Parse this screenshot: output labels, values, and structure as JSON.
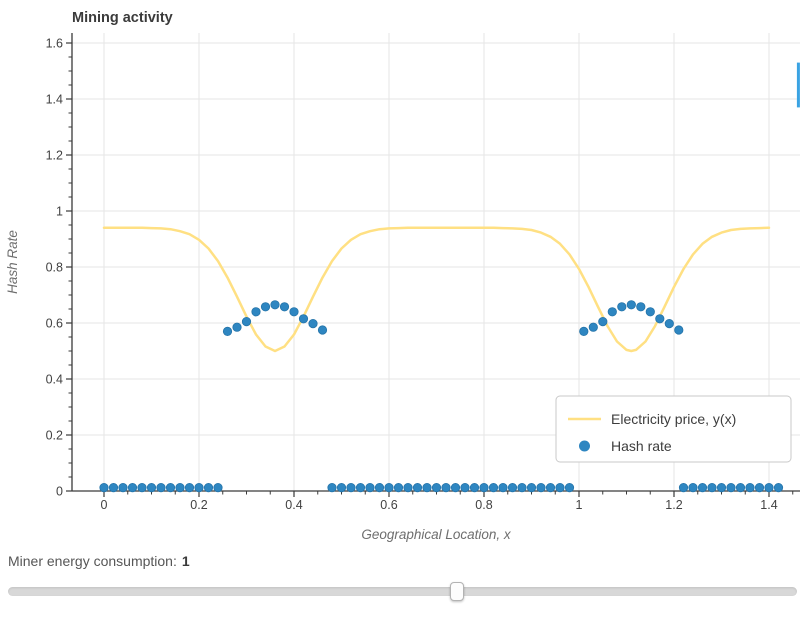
{
  "chart_data": {
    "type": "line",
    "title": "Mining activity",
    "xlabel": "Geographical Location, x",
    "ylabel": "Hash Rate",
    "xlim": [
      -0.07,
      1.465
    ],
    "ylim": [
      0,
      1.636
    ],
    "grid": true,
    "legend_position": "lower right",
    "x_ticks": {
      "values": [
        0,
        0.2,
        0.4,
        0.6,
        0.8,
        1,
        1.2,
        1.4
      ],
      "labels": [
        "0",
        "0.2",
        "0.4",
        "0.6",
        "0.8",
        "1",
        "1.2",
        "1.4"
      ]
    },
    "y_ticks": {
      "values": [
        0,
        0.2,
        0.4,
        0.6,
        0.8,
        1,
        1.2,
        1.4,
        1.6
      ],
      "labels": [
        "0",
        "0.2",
        "0.4",
        "0.6",
        "0.8",
        "1",
        "1.2",
        "1.4",
        "1.6"
      ]
    },
    "colors": {
      "grid": "#e6e6e6",
      "axis": "#3a3a3a",
      "tick_label": "#424242",
      "title": "#3b3b3b",
      "axis_label": "#6e6e6e",
      "price_line": "#ffe083",
      "hash_dot": "#2e86c1"
    },
    "series": [
      {
        "name": "Electricity price, y(x)",
        "type": "line",
        "color": "#ffe083",
        "x": [
          0,
          0.02,
          0.04,
          0.06,
          0.08,
          0.1,
          0.12,
          0.14,
          0.16,
          0.18,
          0.2,
          0.22,
          0.24,
          0.26,
          0.28,
          0.3,
          0.32,
          0.34,
          0.36,
          0.38,
          0.4,
          0.42,
          0.44,
          0.46,
          0.48,
          0.5,
          0.52,
          0.54,
          0.56,
          0.58,
          0.6,
          0.62,
          0.64,
          0.66,
          0.68,
          0.7,
          0.72,
          0.74,
          0.76,
          0.78,
          0.8,
          0.82,
          0.84,
          0.86,
          0.88,
          0.9,
          0.92,
          0.94,
          0.96,
          0.98,
          1,
          1.02,
          1.04,
          1.06,
          1.08,
          1.1,
          1.11,
          1.12,
          1.14,
          1.16,
          1.18,
          1.2,
          1.22,
          1.24,
          1.26,
          1.28,
          1.3,
          1.32,
          1.34,
          1.36,
          1.38,
          1.4
        ],
        "y": [
          0.94,
          0.94,
          0.94,
          0.94,
          0.94,
          0.939,
          0.938,
          0.935,
          0.928,
          0.917,
          0.897,
          0.866,
          0.821,
          0.762,
          0.694,
          0.623,
          0.559,
          0.516,
          0.5,
          0.516,
          0.559,
          0.623,
          0.694,
          0.762,
          0.821,
          0.866,
          0.897,
          0.917,
          0.928,
          0.935,
          0.938,
          0.939,
          0.94,
          0.94,
          0.94,
          0.94,
          0.94,
          0.94,
          0.94,
          0.94,
          0.94,
          0.94,
          0.939,
          0.938,
          0.936,
          0.932,
          0.923,
          0.908,
          0.883,
          0.845,
          0.793,
          0.729,
          0.658,
          0.589,
          0.534,
          0.504,
          0.5,
          0.504,
          0.534,
          0.589,
          0.658,
          0.729,
          0.793,
          0.845,
          0.883,
          0.908,
          0.923,
          0.932,
          0.936,
          0.938,
          0.939,
          0.94
        ]
      },
      {
        "name": "Hash rate",
        "type": "scatter",
        "color": "#2e86c1",
        "points": [
          [
            0.26,
            0.57
          ],
          [
            0.28,
            0.585
          ],
          [
            0.3,
            0.605
          ],
          [
            0.32,
            0.64
          ],
          [
            0.34,
            0.658
          ],
          [
            0.36,
            0.665
          ],
          [
            0.38,
            0.658
          ],
          [
            0.4,
            0.64
          ],
          [
            0.42,
            0.615
          ],
          [
            0.44,
            0.598
          ],
          [
            0.46,
            0.575
          ],
          [
            1.01,
            0.57
          ],
          [
            1.03,
            0.585
          ],
          [
            1.05,
            0.605
          ],
          [
            1.07,
            0.64
          ],
          [
            1.09,
            0.658
          ],
          [
            1.11,
            0.665
          ],
          [
            1.13,
            0.658
          ],
          [
            1.15,
            0.64
          ],
          [
            1.17,
            0.615
          ],
          [
            1.19,
            0.598
          ],
          [
            1.21,
            0.575
          ],
          [
            0,
            0.012
          ],
          [
            0.02,
            0.012
          ],
          [
            0.04,
            0.012
          ],
          [
            0.06,
            0.012
          ],
          [
            0.08,
            0.012
          ],
          [
            0.1,
            0.012
          ],
          [
            0.12,
            0.012
          ],
          [
            0.14,
            0.012
          ],
          [
            0.16,
            0.012
          ],
          [
            0.18,
            0.012
          ],
          [
            0.2,
            0.012
          ],
          [
            0.22,
            0.012
          ],
          [
            0.24,
            0.012
          ],
          [
            0.48,
            0.012
          ],
          [
            0.5,
            0.012
          ],
          [
            0.52,
            0.012
          ],
          [
            0.54,
            0.012
          ],
          [
            0.56,
            0.012
          ],
          [
            0.58,
            0.012
          ],
          [
            0.6,
            0.012
          ],
          [
            0.62,
            0.012
          ],
          [
            0.64,
            0.012
          ],
          [
            0.66,
            0.012
          ],
          [
            0.68,
            0.012
          ],
          [
            0.7,
            0.012
          ],
          [
            0.72,
            0.012
          ],
          [
            0.74,
            0.012
          ],
          [
            0.76,
            0.012
          ],
          [
            0.78,
            0.012
          ],
          [
            0.8,
            0.012
          ],
          [
            0.82,
            0.012
          ],
          [
            0.84,
            0.012
          ],
          [
            0.86,
            0.012
          ],
          [
            0.88,
            0.012
          ],
          [
            0.9,
            0.012
          ],
          [
            0.92,
            0.012
          ],
          [
            0.94,
            0.012
          ],
          [
            0.96,
            0.012
          ],
          [
            0.98,
            0.012
          ],
          [
            1.22,
            0.012
          ],
          [
            1.24,
            0.012
          ],
          [
            1.26,
            0.012
          ],
          [
            1.28,
            0.012
          ],
          [
            1.3,
            0.012
          ],
          [
            1.32,
            0.012
          ],
          [
            1.34,
            0.012
          ],
          [
            1.36,
            0.012
          ],
          [
            1.38,
            0.012
          ],
          [
            1.4,
            0.012
          ],
          [
            1.42,
            0.012
          ]
        ]
      }
    ],
    "edge_mark": {
      "x": 1.462,
      "y_from": 1.37,
      "y_to": 1.53,
      "color": "#3aa3e3"
    }
  },
  "controls": {
    "energy_label": "Miner energy consumption:",
    "energy_value": "1",
    "slider_percent": 56.9
  }
}
